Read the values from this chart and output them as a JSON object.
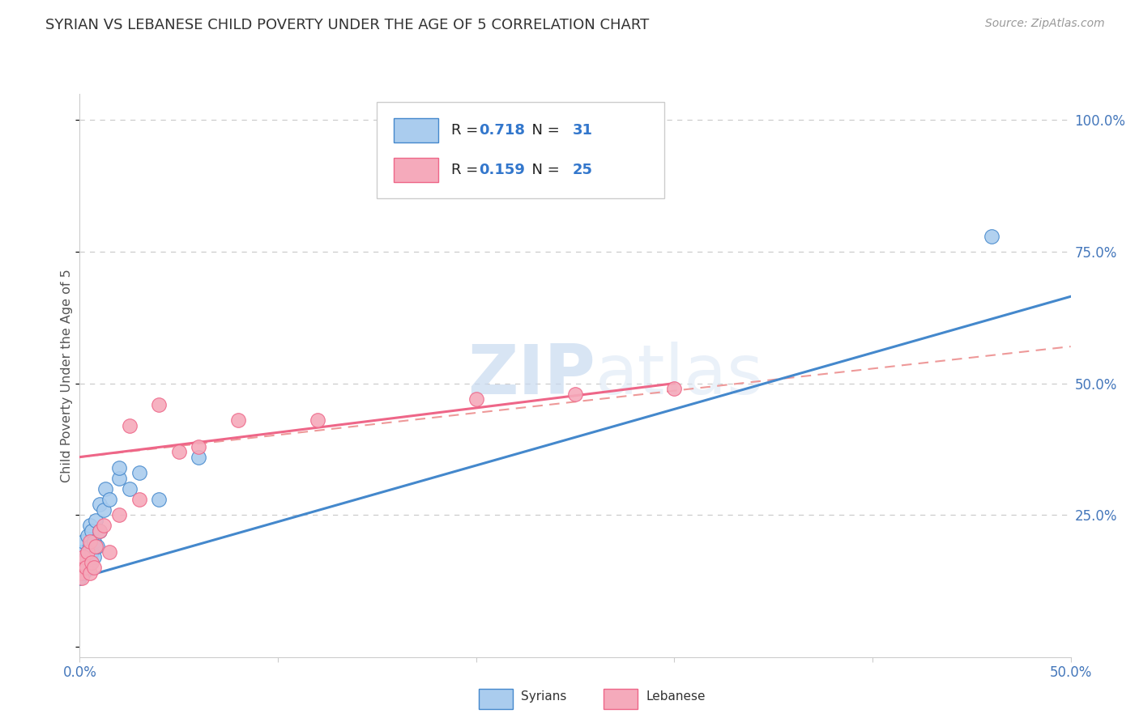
{
  "title": "SYRIAN VS LEBANESE CHILD POVERTY UNDER THE AGE OF 5 CORRELATION CHART",
  "source": "Source: ZipAtlas.com",
  "ylabel": "Child Poverty Under the Age of 5",
  "xlim": [
    0.0,
    0.5
  ],
  "ylim": [
    -0.02,
    1.05
  ],
  "xtick_vals": [
    0.0,
    0.1,
    0.2,
    0.3,
    0.4,
    0.5
  ],
  "xtick_labels": [
    "0.0%",
    "",
    "",
    "",
    "",
    "50.0%"
  ],
  "ytick_vals": [
    0.0,
    0.25,
    0.5,
    0.75,
    1.0
  ],
  "ytick_labels_right": [
    "",
    "25.0%",
    "50.0%",
    "75.0%",
    "100.0%"
  ],
  "legend_R_syrian": "0.718",
  "legend_N_syrian": "31",
  "legend_R_lebanese": "0.159",
  "legend_N_lebanese": "25",
  "syrian_color": "#aaccee",
  "lebanese_color": "#f5aabb",
  "syrian_line_color": "#4488cc",
  "lebanese_line_color": "#ee6688",
  "lebanese_dashed_color": "#ee9999",
  "watermark_color": "#ccddf0",
  "syrian_points_x": [
    0.0,
    0.001,
    0.001,
    0.002,
    0.002,
    0.002,
    0.003,
    0.003,
    0.004,
    0.004,
    0.005,
    0.005,
    0.005,
    0.006,
    0.006,
    0.007,
    0.007,
    0.008,
    0.009,
    0.01,
    0.01,
    0.012,
    0.013,
    0.015,
    0.02,
    0.02,
    0.025,
    0.03,
    0.04,
    0.06,
    0.46
  ],
  "syrian_points_y": [
    0.13,
    0.15,
    0.18,
    0.14,
    0.16,
    0.2,
    0.15,
    0.17,
    0.18,
    0.21,
    0.16,
    0.19,
    0.23,
    0.18,
    0.22,
    0.17,
    0.2,
    0.24,
    0.19,
    0.22,
    0.27,
    0.26,
    0.3,
    0.28,
    0.32,
    0.34,
    0.3,
    0.33,
    0.28,
    0.36,
    0.78
  ],
  "lebanese_points_x": [
    0.0,
    0.001,
    0.001,
    0.002,
    0.003,
    0.004,
    0.005,
    0.005,
    0.006,
    0.007,
    0.008,
    0.01,
    0.012,
    0.015,
    0.02,
    0.025,
    0.03,
    0.04,
    0.05,
    0.06,
    0.08,
    0.12,
    0.2,
    0.25,
    0.3
  ],
  "lebanese_points_y": [
    0.14,
    0.13,
    0.16,
    0.17,
    0.15,
    0.18,
    0.14,
    0.2,
    0.16,
    0.15,
    0.19,
    0.22,
    0.23,
    0.18,
    0.25,
    0.42,
    0.28,
    0.46,
    0.37,
    0.38,
    0.43,
    0.43,
    0.47,
    0.48,
    0.49
  ],
  "syrian_reg": [
    0.0,
    0.5,
    0.13,
    0.665
  ],
  "lebanese_reg_solid": [
    0.0,
    0.3,
    0.36,
    0.5
  ],
  "lebanese_reg_dashed": [
    0.0,
    0.5,
    0.36,
    0.57
  ]
}
